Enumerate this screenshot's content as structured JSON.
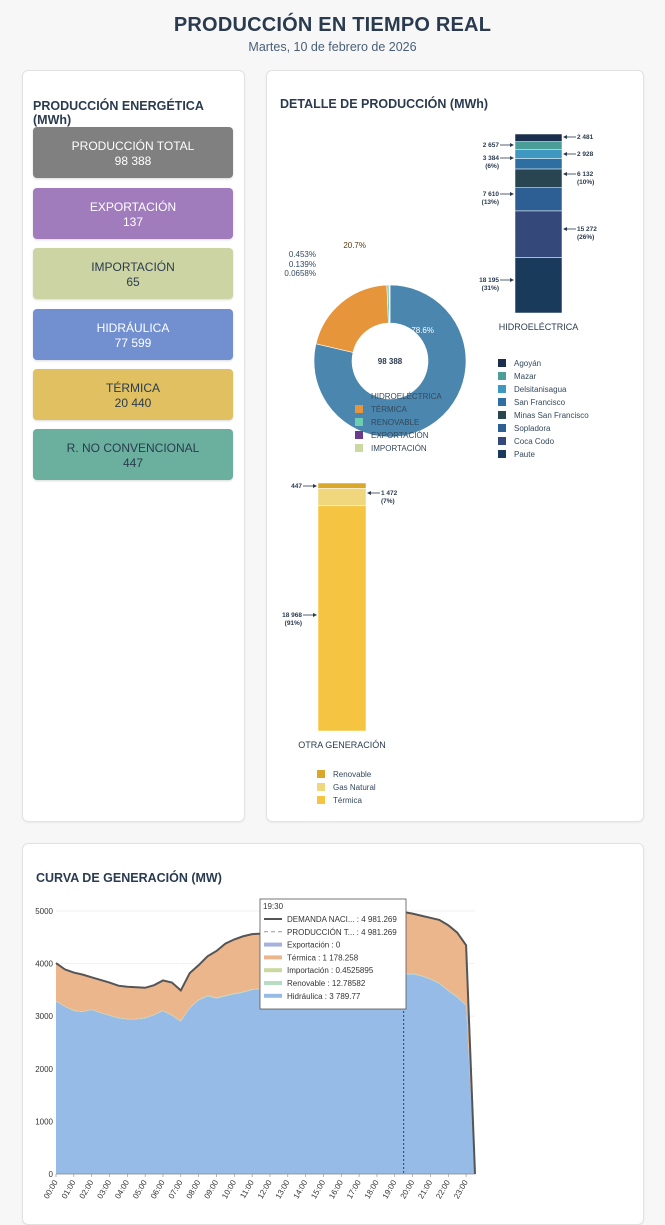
{
  "header": {
    "title": "PRODUCCIÓN EN TIEMPO REAL",
    "date": "Martes, 10 de febrero de 2026"
  },
  "summary": {
    "title": "PRODUCCIÓN ENERGÉTICA (MWh)",
    "items": [
      {
        "label": "PRODUCCIÓN TOTAL",
        "value": "98 388",
        "color": "#808080"
      },
      {
        "label": "EXPORTACIÓN",
        "value": "137",
        "color": "#a07cbd"
      },
      {
        "label": "IMPORTACIÓN",
        "value": "65",
        "color": "#cdd4a3"
      },
      {
        "label": "HIDRÁULICA",
        "value": "77 599",
        "color": "#728fd0"
      },
      {
        "label": "TÉRMICA",
        "value": "20 440",
        "color": "#e0c061"
      },
      {
        "label": "R. NO CONVENCIONAL",
        "value": "447",
        "color": "#6bb09e"
      }
    ]
  },
  "detail": {
    "title": "DETALLE DE PRODUCCIÓN (MWh)"
  },
  "chart_data": [
    {
      "type": "pie",
      "center_label": "98 388",
      "slices": [
        {
          "name": "HIDROELÉCTRICA",
          "percent": 78.6,
          "label": "78.6%",
          "color": "#4a86ad"
        },
        {
          "name": "TÉRMICA",
          "percent": 20.7,
          "label": "20.7%",
          "color": "#e6953a"
        },
        {
          "name": "RENOVABLE",
          "percent": 0.453,
          "label": "0.453%",
          "color": "#6dcdb0"
        },
        {
          "name": "EXPORTACIÓN",
          "percent": 0.139,
          "label": "0.139%",
          "color": "#6a3a8f"
        },
        {
          "name": "IMPORTACIÓN",
          "percent": 0.0658,
          "label": "0.0658%",
          "color": "#cbd8a0"
        }
      ]
    },
    {
      "type": "bar",
      "stacked": true,
      "title": "HIDROELÉCTRICA",
      "segments": [
        {
          "name": "Paute",
          "value": 18195,
          "label": "18 195",
          "pct": "(31%)",
          "color": "#1a3a5b"
        },
        {
          "name": "Coca Codo",
          "value": 15272,
          "label": "15 272",
          "pct": "(26%)",
          "color": "#34497a"
        },
        {
          "name": "Sopladora",
          "value": 7610,
          "label": "7 610",
          "pct": "(13%)",
          "color": "#2d5f94"
        },
        {
          "name": "Minas San Francisco",
          "value": 6132,
          "label": "6 132",
          "pct": "(10%)",
          "color": "#2a4552"
        },
        {
          "name": "San Francisco",
          "value": 3384,
          "label": "3 384",
          "pct": "(6%)",
          "color": "#2f6ea0"
        },
        {
          "name": "Delsitanisagua",
          "value": 2928,
          "label": "2 928",
          "pct": "",
          "color": "#3e98c0"
        },
        {
          "name": "Mazar",
          "value": 2657,
          "label": "2 657",
          "pct": "",
          "color": "#4a9e97"
        },
        {
          "name": "Agoyán",
          "value": 2481,
          "label": "2 481",
          "pct": "",
          "color": "#1b2e4d"
        }
      ]
    },
    {
      "type": "bar",
      "stacked": true,
      "title": "OTRA GENERACIÓN",
      "segments": [
        {
          "name": "Térmica",
          "value": 18968,
          "label": "18 968",
          "pct": "(91%)",
          "color": "#f5c542"
        },
        {
          "name": "Gas Natural",
          "value": 1472,
          "label": "1 472",
          "pct": "(7%)",
          "color": "#f0d67c"
        },
        {
          "name": "Renovable",
          "value": 447,
          "label": "447",
          "pct": "",
          "color": "#d9a82a"
        }
      ]
    },
    {
      "type": "area",
      "title": "CURVA DE GENERACIÓN (MW)",
      "x": [
        "00:00",
        "00:30",
        "01:00",
        "01:30",
        "02:00",
        "02:30",
        "03:00",
        "03:30",
        "04:00",
        "04:30",
        "05:00",
        "05:30",
        "06:00",
        "06:30",
        "07:00",
        "07:30",
        "08:00",
        "08:30",
        "09:00",
        "09:30",
        "10:00",
        "10:30",
        "11:00",
        "11:30",
        "12:00",
        "12:30",
        "13:00",
        "13:30",
        "14:00",
        "14:30",
        "15:00",
        "15:30",
        "16:00",
        "16:30",
        "17:00",
        "17:30",
        "18:00",
        "18:30",
        "19:00",
        "19:30",
        "20:00",
        "20:30",
        "21:00",
        "21:30",
        "22:00",
        "22:30",
        "23:00",
        "23:30"
      ],
      "x_ticks": [
        "00:00",
        "01:00",
        "02:00",
        "03:00",
        "04:00",
        "05:00",
        "06:00",
        "07:00",
        "08:00",
        "09:00",
        "10:00",
        "11:00",
        "12:00",
        "13:00",
        "14:00",
        "15:00",
        "16:00",
        "17:00",
        "18:00",
        "19:00",
        "20:00",
        "21:00",
        "22:00",
        "23:00"
      ],
      "ylim": [
        0,
        5000
      ],
      "y_ticks": [
        0,
        1000,
        2000,
        3000,
        4000,
        5000
      ],
      "series": [
        {
          "name": "Hidráulica",
          "color": "#95bbe6",
          "values": [
            3280,
            3180,
            3100,
            3080,
            3120,
            3060,
            3010,
            2960,
            2940,
            2940,
            2960,
            3020,
            3100,
            3010,
            2900,
            3150,
            3300,
            3380,
            3340,
            3380,
            3420,
            3450,
            3500,
            3520,
            3560,
            3560,
            3580,
            3600,
            3600,
            3610,
            3620,
            3640,
            3650,
            3650,
            3660,
            3680,
            3700,
            3720,
            3740,
            3790,
            3800,
            3760,
            3700,
            3620,
            3480,
            3360,
            3200,
            0
          ]
        },
        {
          "name": "Térmica",
          "color": "#ecb68c",
          "values": [
            720,
            700,
            720,
            700,
            610,
            620,
            620,
            610,
            610,
            600,
            570,
            560,
            570,
            620,
            580,
            660,
            650,
            740,
            880,
            980,
            1020,
            1050,
            1040,
            1030,
            1010,
            1020,
            980,
            990,
            990,
            980,
            980,
            970,
            960,
            970,
            990,
            1010,
            1060,
            1100,
            1130,
            1178,
            1140,
            1140,
            1160,
            1200,
            1240,
            1220,
            1140,
            0
          ]
        },
        {
          "name": "Renovable",
          "color": "#b6dcc2",
          "values": [
            10,
            10,
            10,
            10,
            10,
            10,
            10,
            10,
            10,
            10,
            10,
            10,
            10,
            12,
            14,
            16,
            16,
            16,
            16,
            15,
            14,
            14,
            13,
            13,
            13,
            13,
            13,
            13,
            13,
            13,
            13,
            13,
            13,
            13,
            13,
            13,
            13,
            13,
            13,
            13,
            13,
            13,
            13,
            13,
            13,
            13,
            13,
            0
          ]
        },
        {
          "name": "Importación",
          "color": "#cbd8a0",
          "values": [
            0,
            0,
            0,
            0,
            0,
            0,
            0,
            0,
            0,
            0,
            0,
            0,
            0,
            0,
            0,
            0,
            0,
            0,
            0,
            0,
            0,
            0,
            0,
            0,
            0,
            0,
            0,
            0,
            0,
            0,
            0,
            0,
            0,
            0,
            0,
            0,
            0,
            0,
            0,
            0.45,
            0,
            0,
            0,
            0,
            0,
            0,
            0,
            0
          ]
        },
        {
          "name": "Exportación",
          "color": "#a6b2dd",
          "values": [
            0,
            0,
            0,
            0,
            0,
            0,
            0,
            0,
            0,
            0,
            0,
            0,
            0,
            0,
            0,
            0,
            0,
            0,
            0,
            0,
            0,
            0,
            0,
            0,
            0,
            0,
            0,
            0,
            0,
            0,
            0,
            0,
            0,
            0,
            0,
            0,
            0,
            0,
            0,
            0,
            0,
            0,
            0,
            0,
            0,
            0,
            0,
            0
          ]
        }
      ],
      "demand_line": {
        "name": "DEMANDA NACIONAL",
        "color": "#555555",
        "values": [
          4010,
          3890,
          3830,
          3790,
          3740,
          3690,
          3640,
          3580,
          3560,
          3550,
          3540,
          3590,
          3680,
          3640,
          3490,
          3820,
          3970,
          4140,
          4240,
          4380,
          4460,
          4520,
          4560,
          4570,
          4580,
          4590,
          4590,
          4610,
          4610,
          4620,
          4630,
          4640,
          4640,
          4650,
          4670,
          4700,
          4780,
          4840,
          4890,
          4981,
          4950,
          4910,
          4870,
          4830,
          4730,
          4590,
          4350,
          0
        ]
      },
      "tooltip": {
        "time": "19:30",
        "rows": [
          {
            "label": "DEMANDA NACI... : 4 981.269",
            "kind": "line",
            "color": "#555555"
          },
          {
            "label": "PRODUCCIÓN T... : 4 981.269",
            "kind": "dash",
            "color": "#999999"
          },
          {
            "label": "Exportación : 0",
            "kind": "area",
            "color": "#a6b2dd"
          },
          {
            "label": "Térmica : 1 178.258",
            "kind": "area",
            "color": "#ecb68c"
          },
          {
            "label": "Importación : 0.4525895",
            "kind": "area",
            "color": "#cbd8a0"
          },
          {
            "label": "Renovable : 12.78582",
            "kind": "area",
            "color": "#b6dcc2"
          },
          {
            "label": "Hidráulica : 3 789.77",
            "kind": "area",
            "color": "#95bbe6"
          }
        ]
      }
    }
  ]
}
